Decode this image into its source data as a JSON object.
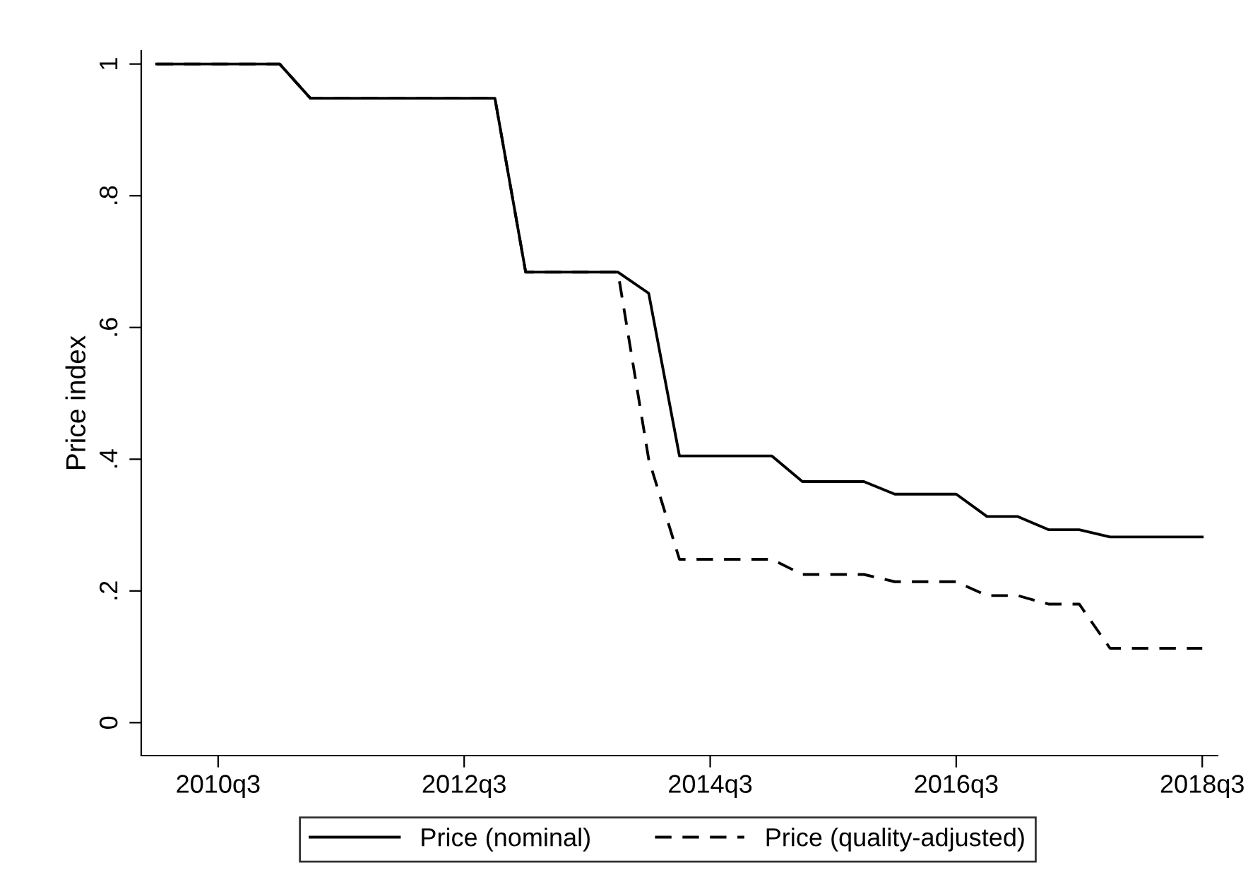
{
  "chart_data": {
    "type": "line",
    "ylabel": "Price index",
    "categories": [
      null,
      null,
      "2010q3",
      null,
      null,
      null,
      null,
      null,
      null,
      null,
      "2012q3",
      null,
      null,
      null,
      null,
      null,
      null,
      null,
      "2014q3",
      null,
      null,
      null,
      null,
      null,
      null,
      null,
      "2016q3",
      null,
      null,
      null,
      null,
      null,
      null,
      null,
      "2018q3"
    ],
    "series": [
      {
        "name": "Price (nominal)",
        "color": "#000000",
        "line_style": "solid",
        "values": [
          1,
          1,
          1,
          1,
          1,
          0.948,
          0.948,
          0.948,
          0.948,
          0.948,
          0.948,
          0.948,
          0.684,
          0.684,
          0.684,
          0.684,
          0.652,
          0.405,
          0.405,
          0.405,
          0.405,
          0.366,
          0.366,
          0.366,
          0.347,
          0.347,
          0.347,
          0.313,
          0.313,
          0.293,
          0.293,
          0.282,
          0.282,
          0.282,
          0.282
        ]
      },
      {
        "name": "Price (quality-adjusted)",
        "color": "#000000",
        "line_style": "dashed",
        "values": [
          1,
          1,
          1,
          1,
          1,
          0.948,
          0.948,
          0.948,
          0.948,
          0.948,
          0.948,
          0.948,
          0.684,
          0.684,
          0.684,
          0.684,
          0.4,
          0.248,
          0.248,
          0.248,
          0.248,
          0.225,
          0.225,
          0.225,
          0.214,
          0.214,
          0.214,
          0.193,
          0.193,
          0.18,
          0.18,
          0.113,
          0.113,
          0.113,
          0.113
        ]
      }
    ],
    "ylim": [
      -0.05,
      1.02
    ],
    "yticks": [
      0,
      {
        "value": 0.2,
        "label": ".2"
      },
      {
        "value": 0.4,
        "label": ".4"
      },
      {
        "value": 0.6,
        "label": ".6"
      },
      {
        "value": 0.8,
        "label": ".8"
      },
      1
    ],
    "grid": false,
    "legend": "bottom",
    "marker": "none"
  }
}
